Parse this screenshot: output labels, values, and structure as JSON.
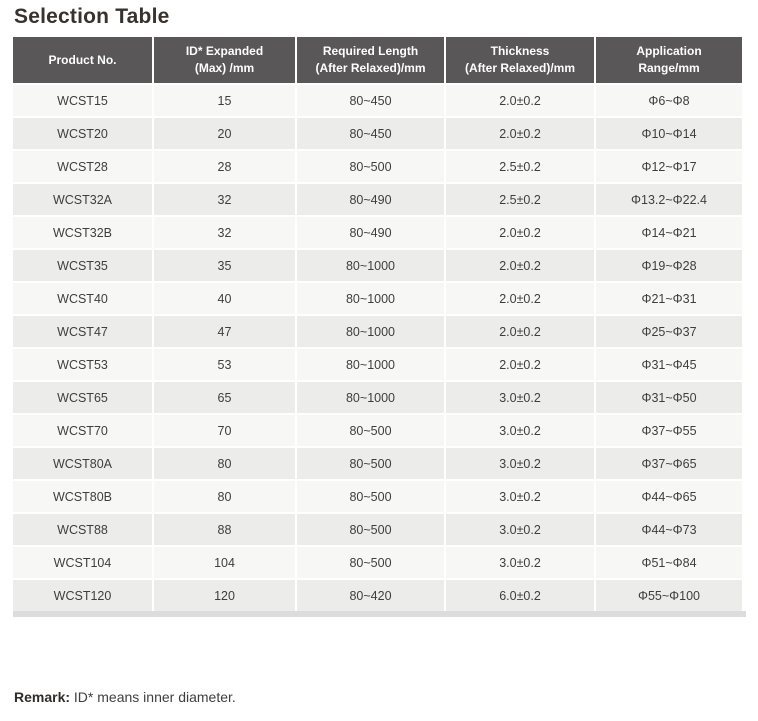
{
  "page": {
    "title": "Selection Table",
    "remark": {
      "label": "Remark:",
      "text": " ID* means inner diameter."
    }
  },
  "table": {
    "columns": [
      {
        "line1": "Product No.",
        "line2": ""
      },
      {
        "line1": "ID* Expanded",
        "line2": "(Max) /mm"
      },
      {
        "line1": "Required Length",
        "line2": "(After Relaxed)/mm"
      },
      {
        "line1": "Thickness",
        "line2": "(After Relaxed)/mm"
      },
      {
        "line1": "Application",
        "line2": "Range/mm"
      }
    ],
    "rows": [
      [
        "WCST15",
        "15",
        "80~450",
        "2.0±0.2",
        "Φ6~Φ8"
      ],
      [
        "WCST20",
        "20",
        "80~450",
        "2.0±0.2",
        "Φ10~Φ14"
      ],
      [
        "WCST28",
        "28",
        "80~500",
        "2.5±0.2",
        "Φ12~Φ17"
      ],
      [
        "WCST32A",
        "32",
        "80~490",
        "2.5±0.2",
        "Φ13.2~Φ22.4"
      ],
      [
        "WCST32B",
        "32",
        "80~490",
        "2.0±0.2",
        "Φ14~Φ21"
      ],
      [
        "WCST35",
        "35",
        "80~1000",
        "2.0±0.2",
        "Φ19~Φ28"
      ],
      [
        "WCST40",
        "40",
        "80~1000",
        "2.0±0.2",
        "Φ21~Φ31"
      ],
      [
        "WCST47",
        "47",
        "80~1000",
        "2.0±0.2",
        "Φ25~Φ37"
      ],
      [
        "WCST53",
        "53",
        "80~1000",
        "2.0±0.2",
        "Φ31~Φ45"
      ],
      [
        "WCST65",
        "65",
        "80~1000",
        "3.0±0.2",
        "Φ31~Φ50"
      ],
      [
        "WCST70",
        "70",
        "80~500",
        "3.0±0.2",
        "Φ37~Φ55"
      ],
      [
        "WCST80A",
        "80",
        "80~500",
        "3.0±0.2",
        "Φ37~Φ65"
      ],
      [
        "WCST80B",
        "80",
        "80~500",
        "3.0±0.2",
        "Φ44~Φ65"
      ],
      [
        "WCST88",
        "88",
        "80~500",
        "3.0±0.2",
        "Φ44~Φ73"
      ],
      [
        "WCST104",
        "104",
        "80~500",
        "3.0±0.2",
        "Φ51~Φ84"
      ],
      [
        "WCST120",
        "120",
        "80~420",
        "6.0±0.2",
        "Φ55~Φ100"
      ]
    ]
  },
  "colors": {
    "header_bg": "#595757",
    "header_text": "#ffffff",
    "row_light": "#f7f7f6",
    "row_dark": "#ececeb",
    "strip": "#dcdcdc",
    "body_text": "#3f3e3e",
    "title_text": "#38322d"
  }
}
